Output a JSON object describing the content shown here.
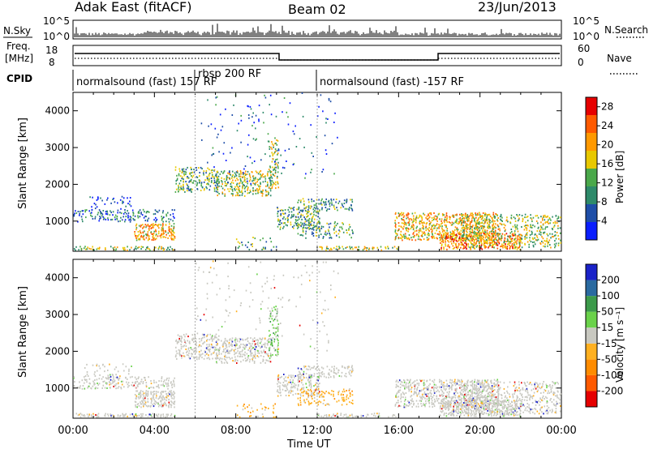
{
  "header": {
    "station": "Adak East (fitACF)",
    "beam": "Beam 02",
    "date": "23/Jun/2013"
  },
  "panels": {
    "nsky": {
      "label": "N.Sky",
      "ticks_left": [
        "10^5",
        "10^0"
      ],
      "ticks_right": [
        "10^5",
        "10^0"
      ],
      "right_label": "N.Search"
    },
    "freq": {
      "label_line1": "Freq.",
      "label_line2": "[MHz]",
      "ticks_left": [
        "18",
        "8"
      ],
      "ticks_right": [
        "60",
        "0"
      ],
      "right_label": "Nave"
    },
    "cpid": {
      "label": "CPID",
      "segments": [
        {
          "text": "normalsound (fast) 157 RF",
          "start_h": 0,
          "end_h": 6
        },
        {
          "text": "rbsp 200 RF",
          "start_h": 6,
          "end_h": 12
        },
        {
          "text": "normalsound (fast) -157 RF",
          "start_h": 12,
          "end_h": 24
        }
      ]
    }
  },
  "chart_data": [
    {
      "type": "heatmap",
      "title": "",
      "xlabel": "Time UT",
      "ylabel": "Slant Range [km]",
      "xlim_hours": [
        0,
        24
      ],
      "ylim": [
        180,
        4500
      ],
      "x_ticks": [
        "00:00",
        "04:00",
        "08:00",
        "12:00",
        "16:00",
        "20:00",
        "00:00"
      ],
      "y_ticks": [
        1000,
        2000,
        3000,
        4000
      ],
      "colorbar": {
        "label": "Power [dB]",
        "ticks": [
          4,
          8,
          12,
          16,
          20,
          24,
          28
        ],
        "range": [
          0,
          30
        ],
        "colors": [
          "#0a1eff",
          "#1e4ea8",
          "#2e8a6a",
          "#4aa84a",
          "#e8c800",
          "#ff9900",
          "#ff5a00",
          "#e60000"
        ]
      }
    },
    {
      "type": "heatmap",
      "title": "",
      "xlabel": "Time UT",
      "ylabel": "Slant Range [km]",
      "xlim_hours": [
        0,
        24
      ],
      "ylim": [
        180,
        4500
      ],
      "x_ticks": [
        "00:00",
        "04:00",
        "08:00",
        "12:00",
        "16:00",
        "20:00",
        "00:00"
      ],
      "y_ticks": [
        1000,
        2000,
        3000,
        4000
      ],
      "colorbar": {
        "label": "Velocity [m s⁻¹]",
        "ticks": [
          200,
          100,
          50,
          15,
          -15,
          -50,
          -100,
          -200
        ],
        "colors": [
          "#1a22c8",
          "#2a6aa0",
          "#3c9a4a",
          "#6ad24a",
          "#c8c8c0",
          "#ffb020",
          "#ff8c00",
          "#ff5a00",
          "#e60000"
        ]
      }
    }
  ]
}
